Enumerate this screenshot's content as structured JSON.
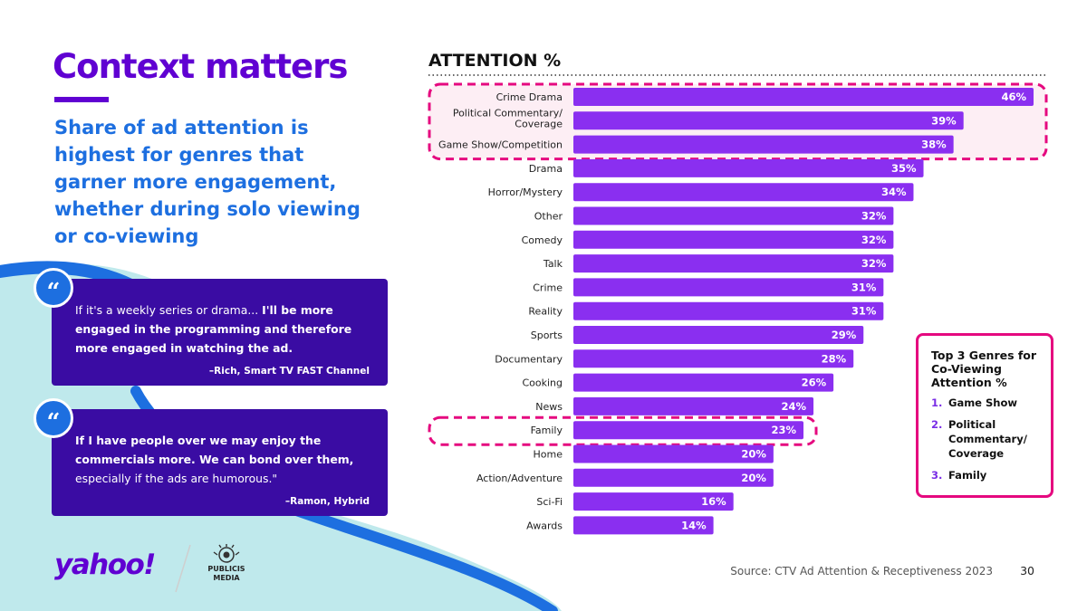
{
  "page": {
    "title": "Context matters",
    "subtitle": "Share of ad attention is highest for genres that garner more engagement, whether during solo viewing or co-viewing",
    "source": "Source: CTV Ad Attention & Receptiveness 2023",
    "page_number": "30"
  },
  "quotes": [
    {
      "mark": "“",
      "text_plain": "If it's a weekly series or drama... ",
      "text_bold": "I'll be more engaged in the programming and therefore more engaged in watching the ad.",
      "attribution": "–Rich, Smart TV FAST Channel"
    },
    {
      "mark": "“",
      "text_bold": "If I have people over we may enjoy the commercials more. We can bond over them,",
      "text_plain": " especially if the ads are humorous.\"",
      "attribution": "–Ramon, Hybrid"
    }
  ],
  "logos": {
    "yahoo": "yahoo!",
    "publicis_line1": "PUBLICIS",
    "publicis_line2": "MEDIA"
  },
  "legend": {
    "title": "Top 3 Genres for Co-Viewing Attention %",
    "items": [
      {
        "num": "1.",
        "label": "Game Show"
      },
      {
        "num": "2.",
        "label": "Political Commentary/ Coverage"
      },
      {
        "num": "3.",
        "label": "Family"
      }
    ]
  },
  "colors": {
    "bar": "#8a2ff0",
    "highlight": "#e5097f",
    "title": "#6001d2",
    "subtitle": "#1d6fe0",
    "quote_bg": "#3a0ca3"
  },
  "chart_data": {
    "type": "bar",
    "orientation": "horizontal",
    "title": "ATTENTION %",
    "categories": [
      "Crime Drama",
      "Political Commentary/ Coverage",
      "Game Show/Competition",
      "Drama",
      "Horror/Mystery",
      "Other",
      "Comedy",
      "Talk",
      "Crime",
      "Reality",
      "Sports",
      "Documentary",
      "Cooking",
      "News",
      "Family",
      "Home",
      "Action/Adventure",
      "Sci-Fi",
      "Awards"
    ],
    "values": [
      46,
      39,
      38,
      35,
      34,
      32,
      32,
      32,
      31,
      31,
      29,
      28,
      26,
      24,
      23,
      20,
      20,
      16,
      14
    ],
    "value_labels": [
      "46%",
      "39%",
      "38%",
      "35%",
      "34%",
      "32%",
      "32%",
      "32%",
      "31%",
      "31%",
      "29%",
      "28%",
      "26%",
      "24%",
      "23%",
      "20%",
      "20%",
      "16%",
      "14%"
    ],
    "highlighted_groups": [
      [
        0,
        1,
        2
      ],
      [
        14
      ]
    ],
    "xlim": [
      0,
      46
    ]
  }
}
